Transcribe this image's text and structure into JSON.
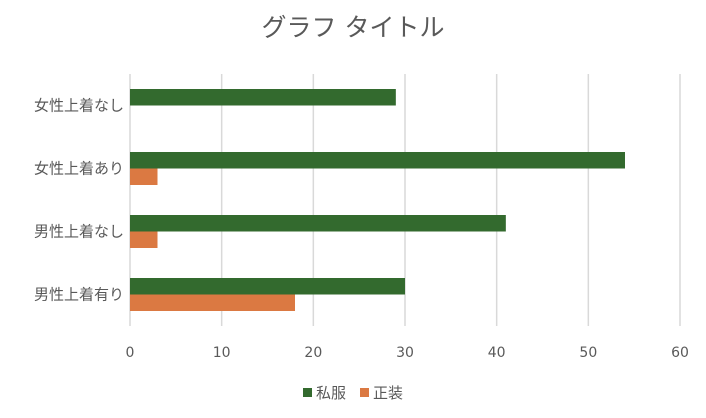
{
  "chart_data": {
    "type": "bar",
    "orientation": "horizontal",
    "title": "グラフ タイトル",
    "categories": [
      "女性上着なし",
      "女性上着あり",
      "男性上着なし",
      "男性上着有り"
    ],
    "series": [
      {
        "name": "私服",
        "color": "#336a2e",
        "values": [
          29,
          54,
          41,
          30
        ]
      },
      {
        "name": "正装",
        "color": "#db7942",
        "values": [
          0,
          3,
          3,
          18
        ]
      }
    ],
    "xlim": [
      0,
      60
    ],
    "xticks": [
      "0",
      "10",
      "20",
      "30",
      "40",
      "50",
      "60"
    ],
    "grid": true,
    "gridline_color": "#d9d9d9",
    "legend_position": "bottom"
  }
}
